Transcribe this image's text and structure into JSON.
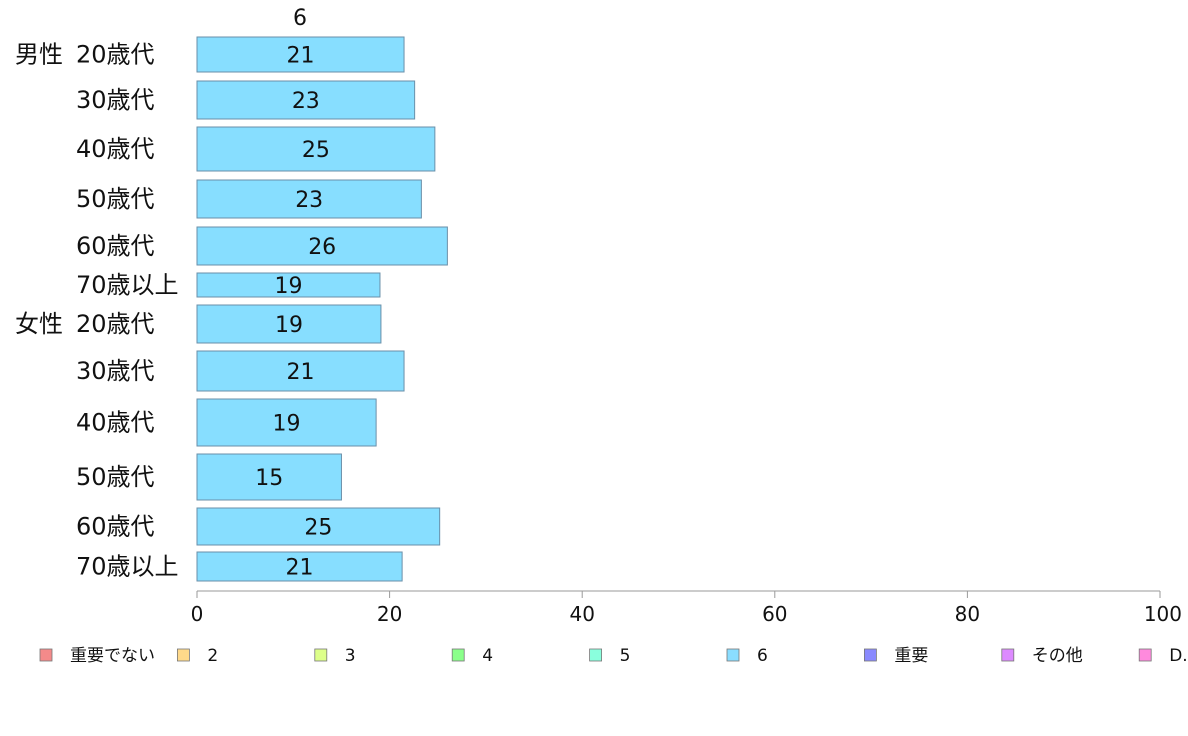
{
  "chart_data": {
    "type": "bar",
    "orientation": "horizontal",
    "series_header": "6",
    "categories": [
      {
        "group": "男性",
        "label": "20歳代"
      },
      {
        "group": "",
        "label": "30歳代"
      },
      {
        "group": "",
        "label": "40歳代"
      },
      {
        "group": "",
        "label": "50歳代"
      },
      {
        "group": "",
        "label": "60歳代"
      },
      {
        "group": "",
        "label": "70歳以上"
      },
      {
        "group": "女性",
        "label": "20歳代"
      },
      {
        "group": "",
        "label": "30歳代"
      },
      {
        "group": "",
        "label": "40歳代"
      },
      {
        "group": "",
        "label": "50歳代"
      },
      {
        "group": "",
        "label": "60歳代"
      },
      {
        "group": "",
        "label": "70歳以上"
      }
    ],
    "series": [
      {
        "name": "6",
        "color": "#87DEFF",
        "values": [
          21.5,
          22.6,
          24.7,
          23.3,
          26.0,
          19.0,
          19.1,
          21.5,
          18.6,
          15.0,
          25.2,
          21.3
        ],
        "labels": [
          "21",
          "23",
          "25",
          "23",
          "26",
          "19",
          "19",
          "21",
          "19",
          "15",
          "25",
          "21"
        ]
      }
    ],
    "xlim": [
      0,
      100
    ],
    "xticks": [
      "0",
      "20",
      "40",
      "60",
      "80",
      "100"
    ],
    "legend": {
      "position": "bottom",
      "items": [
        {
          "label": "重要でない",
          "color": "#F48A8A"
        },
        {
          "label": "2",
          "color": "#FFD98A"
        },
        {
          "label": "3",
          "color": "#DDFF8A"
        },
        {
          "label": "4",
          "color": "#8AFF8A"
        },
        {
          "label": "5",
          "color": "#8AFFDD"
        },
        {
          "label": "6",
          "color": "#8ADDFF"
        },
        {
          "label": "重要",
          "color": "#8A8AFF"
        },
        {
          "label": "その他",
          "color": "#DD8AFF"
        },
        {
          "label": "D.K",
          "color": "#FF8ADD"
        }
      ]
    },
    "colors": {
      "axis": "#9a9a9a",
      "bar_stroke": "#6a8fa8"
    }
  }
}
